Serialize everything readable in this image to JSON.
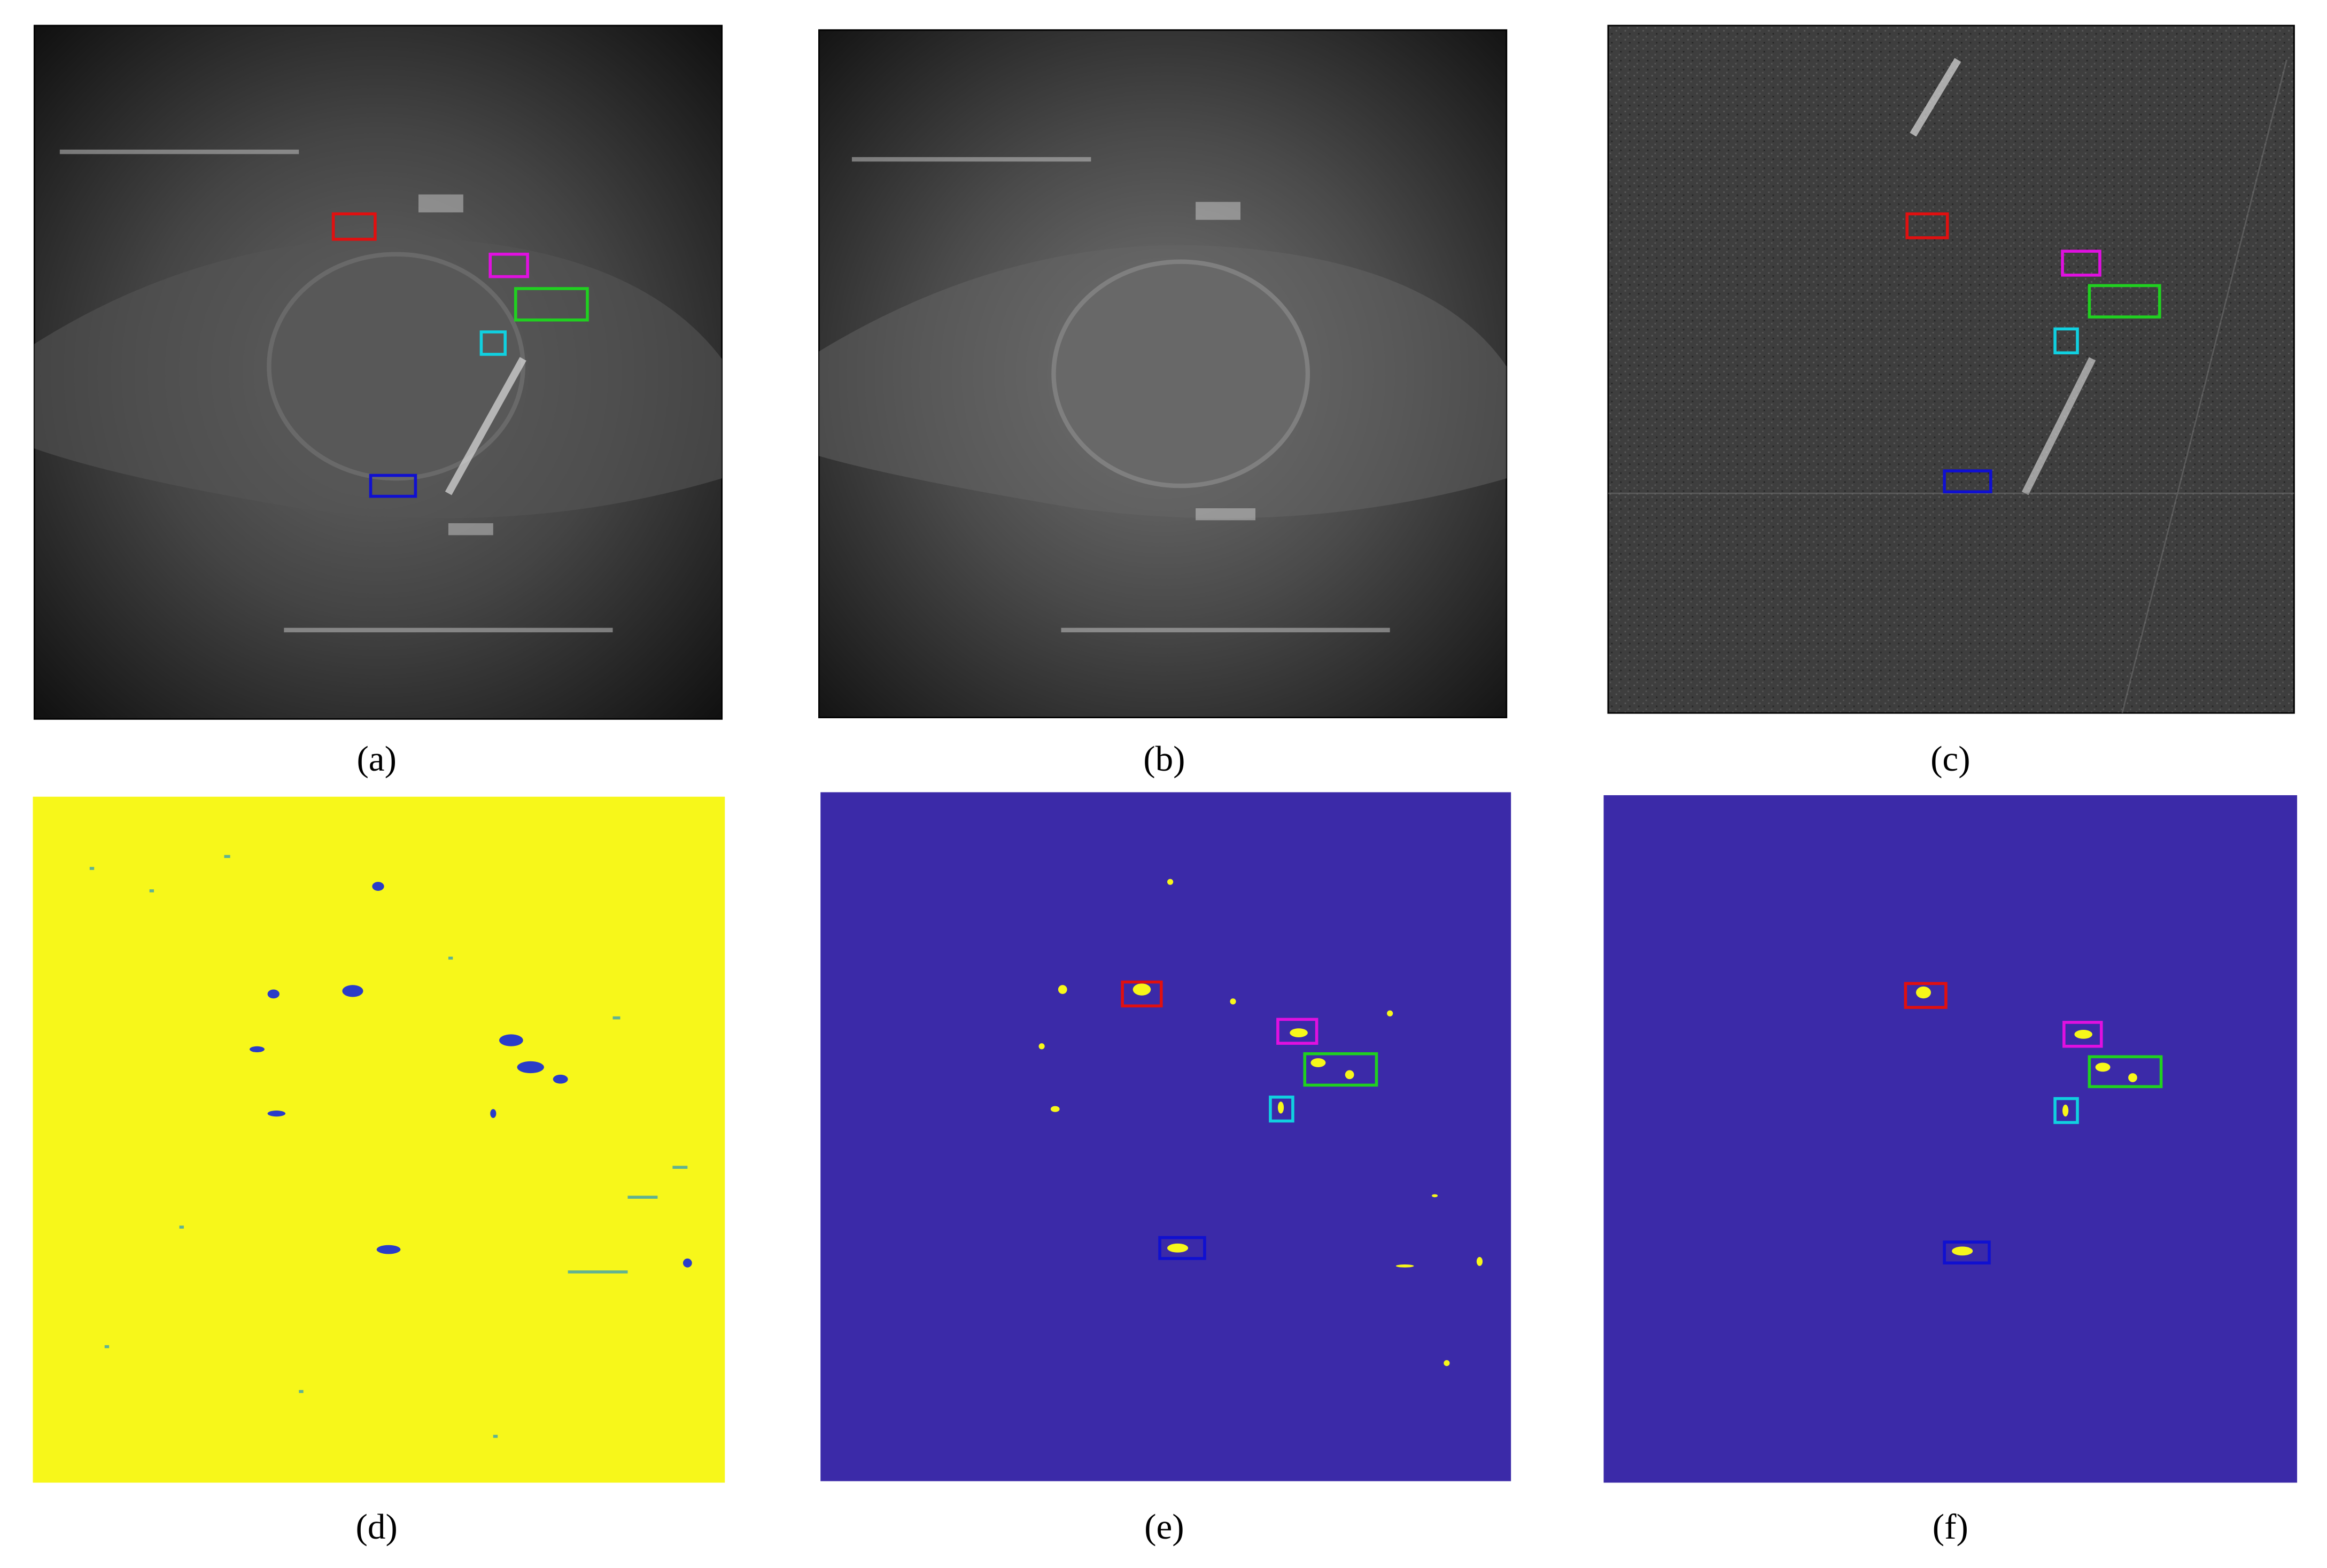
{
  "figure": {
    "captions": [
      "(a)",
      "(b)",
      "(c)",
      "(d)",
      "(e)",
      "(f)"
    ]
  }
}
